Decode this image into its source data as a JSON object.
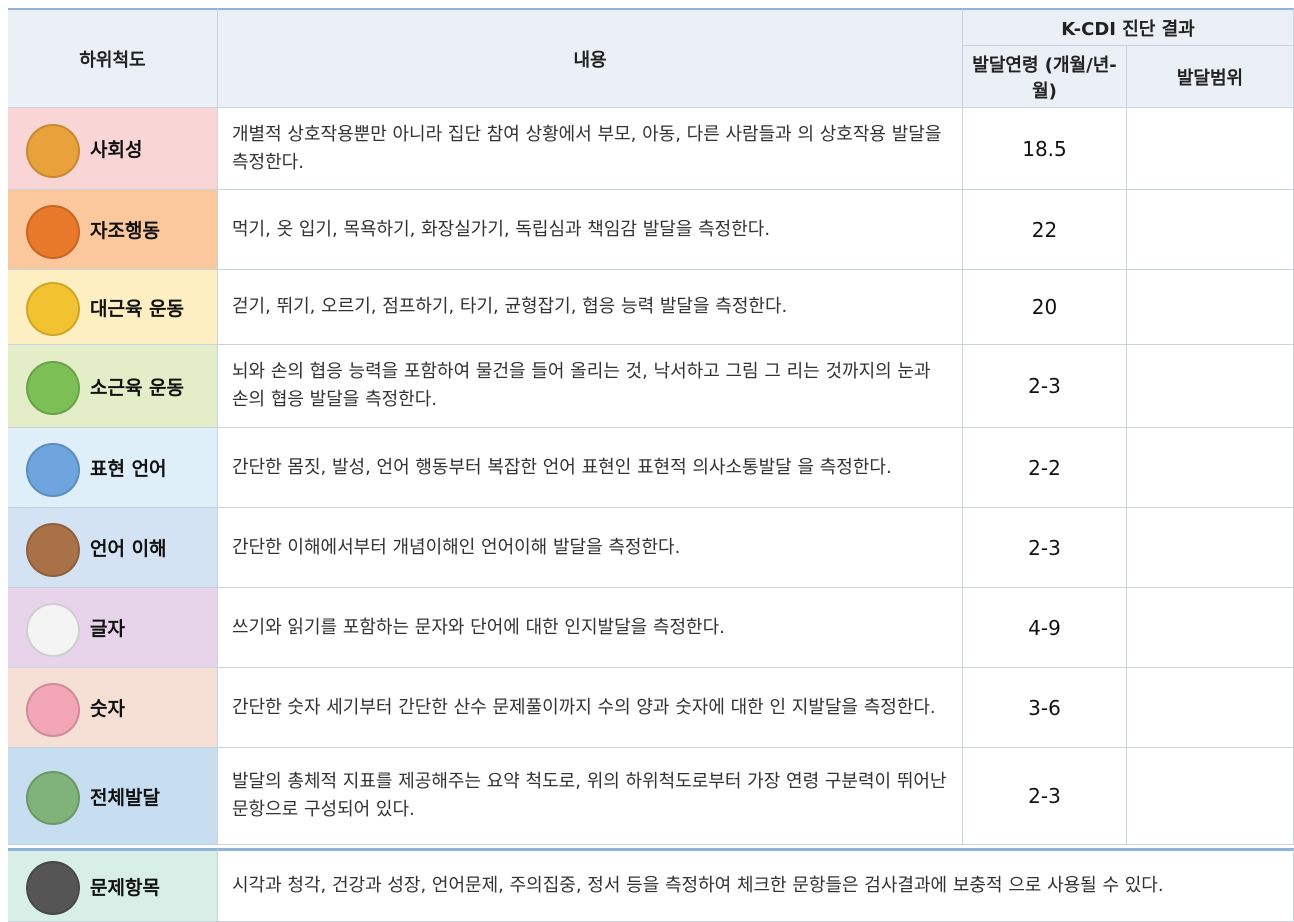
{
  "header": {
    "col1": "하위척도",
    "col2": "내용",
    "group": "K-CDI 진단 결과",
    "col3": "발달연령 (개월/년-월)",
    "col4": "발달범위"
  },
  "rows": [
    {
      "name": "사회성",
      "content": "개별적 상호작용뿐만 아니라 집단 참여 상황에서 부모, 아동, 다른 사람들과 의 상호작용 발달을 측정한다.",
      "age": "18.5"
    },
    {
      "name": "자조행동",
      "content": "먹기, 옷 입기, 목욕하기, 화장실가기, 독립심과 책임감 발달을 측정한다.",
      "age": "22"
    },
    {
      "name": "대근육 운동",
      "content": "걷기, 뛰기, 오르기, 점프하기, 타기, 균형잡기, 협응 능력 발달을 측정한다.",
      "age": "20"
    },
    {
      "name": "소근육 운동",
      "content": "뇌와 손의 협응 능력을 포함하여 물건을 들어 올리는 것, 낙서하고 그림 그 리는 것까지의 눈과 손의 협응 발달을 측정한다.",
      "age": "2-3"
    },
    {
      "name": "표현 언어",
      "content": "간단한 몸짓, 발성, 언어 행동부터 복잡한 언어 표현인 표현적 의사소통발달 을 측정한다.",
      "age": "2-2"
    },
    {
      "name": "언어 이해",
      "content": "간단한 이해에서부터 개념이해인 언어이해 발달을 측정한다.",
      "age": "2-3"
    },
    {
      "name": "글자",
      "content": "쓰기와 읽기를 포함하는 문자와 단어에 대한 인지발달을 측정한다.",
      "age": "4-9"
    },
    {
      "name": "숫자",
      "content": "간단한 숫자 세기부터 간단한 산수 문제풀이까지 수의 양과 숫자에 대한 인 지발달을 측정한다.",
      "age": "3-6"
    },
    {
      "name": "전체발달",
      "content": "발달의 총체적 지표를 제공해주는 요약 척도로, 위의 하위척도로부터 가장 연령 구분력이 뛰어난 문항으로 구성되어 있다.",
      "age": "2-3"
    }
  ],
  "footer_row": {
    "name": "문제항목",
    "content": "시각과 청각, 건강과 성장, 언어문제, 주의집중, 정서 등을 측정하여 체크한 문항들은 검사결과에 보충적 으로 사용될 수 있다."
  }
}
